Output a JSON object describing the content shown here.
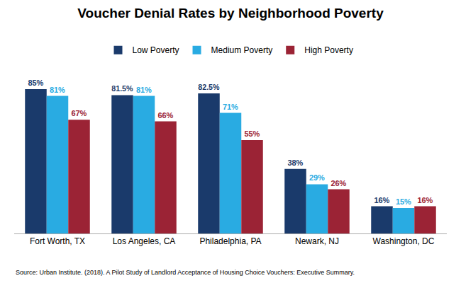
{
  "chart_data": {
    "type": "bar",
    "title": "Voucher Denial Rates by Neighborhood Poverty",
    "categories": [
      "Fort Worth, TX",
      "Los Angeles, CA",
      "Philadelphia, PA",
      "Newark, NJ",
      "Washington, DC"
    ],
    "series": [
      {
        "name": "Low Poverty",
        "color": "#1a3a6b",
        "values": [
          85.0,
          81.5,
          82.5,
          38.0,
          16.0
        ],
        "value_labels": [
          "85%",
          "81.5%",
          "82.5%",
          "38%",
          "16%"
        ]
      },
      {
        "name": "Medium Poverty",
        "color": "#29abe2",
        "values": [
          81.0,
          81.0,
          71.0,
          29.0,
          15.0
        ],
        "value_labels": [
          "81%",
          "81%",
          "71%",
          "29%",
          "15%"
        ]
      },
      {
        "name": "High Poverty",
        "color": "#9b2335",
        "values": [
          67.0,
          66.0,
          55.0,
          26.0,
          16.0
        ],
        "value_labels": [
          "67%",
          "66%",
          "55%",
          "26%",
          "16%"
        ]
      }
    ],
    "ylim": [
      0,
      100
    ],
    "grid": false,
    "legend": "top",
    "data_labels": true,
    "tick_labels": "x",
    "annotations": [
      "Source: Urban Institute. (2018). A Pilot Study of Landlord Acceptance of Housing Choice Vouchers: Executive Summary."
    ]
  }
}
